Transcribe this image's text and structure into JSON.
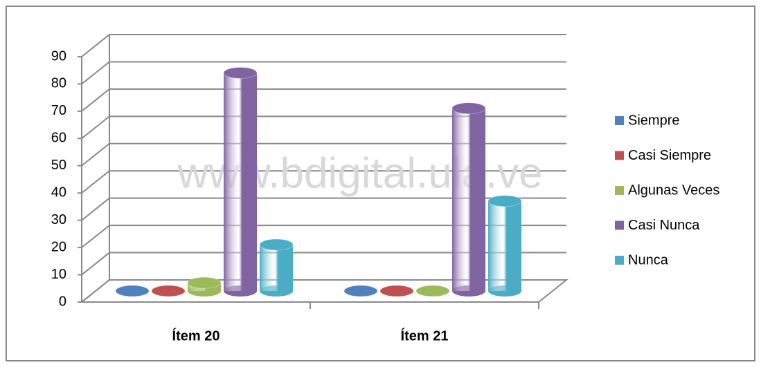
{
  "chart_data": {
    "type": "bar3d",
    "categories": [
      "Ítem 20",
      "Ítem 21"
    ],
    "series": [
      {
        "name": "Siempre",
        "color": "#4f81bd",
        "values": [
          0,
          0
        ]
      },
      {
        "name": "Casi Siempre",
        "color": "#c0504d",
        "values": [
          0,
          0
        ]
      },
      {
        "name": "Algunas Veces",
        "color": "#9bbb59",
        "values": [
          3,
          0
        ]
      },
      {
        "name": "Casi Nunca",
        "color": "#8064a2",
        "values": [
          80,
          67
        ]
      },
      {
        "name": "Nunca",
        "color": "#4bacc6",
        "values": [
          17,
          33
        ]
      }
    ],
    "ylim": [
      0,
      90
    ],
    "yticks": [
      0,
      10,
      20,
      30,
      40,
      50,
      60,
      70,
      80,
      90
    ],
    "grid": true,
    "legend": "right",
    "annotations": [
      "www.bdigital.ula.ve"
    ]
  }
}
